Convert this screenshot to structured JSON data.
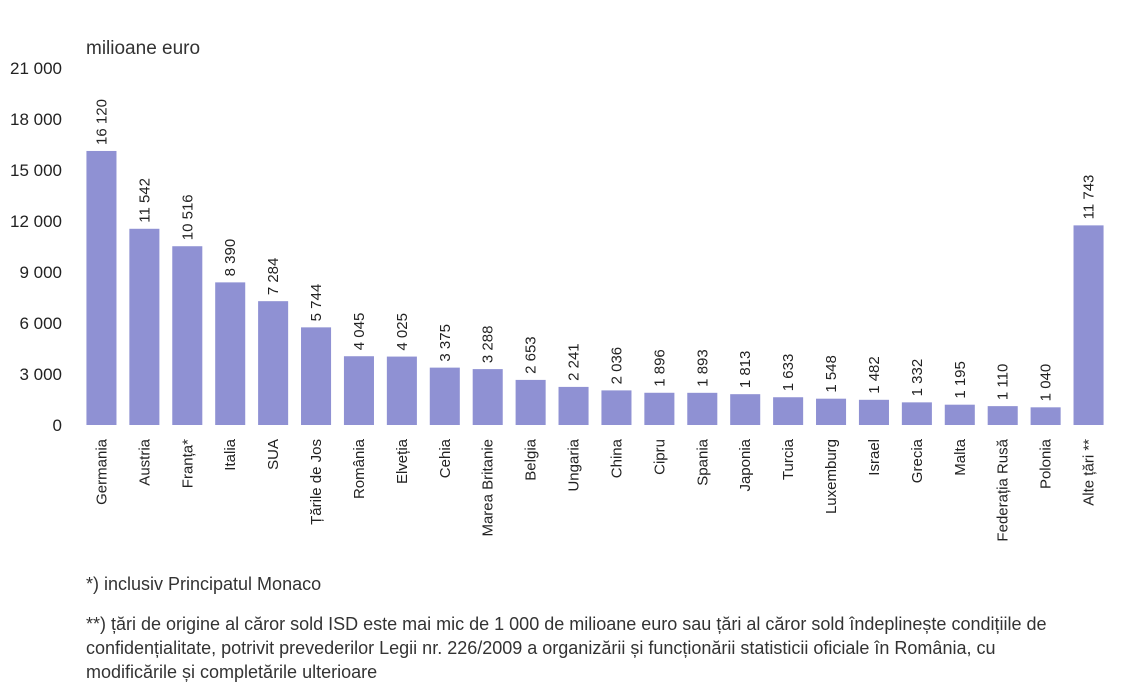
{
  "chart_data": {
    "type": "bar",
    "unit_label": "milioane euro",
    "categories": [
      "Germania",
      "Austria",
      "Franța*",
      "Italia",
      "SUA",
      "Țările de Jos",
      "România",
      "Elveția",
      "Cehia",
      "Marea Britanie",
      "Belgia",
      "Ungaria",
      "China",
      "Cipru",
      "Spania",
      "Japonia",
      "Turcia",
      "Luxemburg",
      "Israel",
      "Grecia",
      "Malta",
      "Federația Rusă",
      "Polonia",
      "Alte țări **"
    ],
    "values": [
      16120,
      11542,
      10516,
      8390,
      7284,
      5744,
      4045,
      4025,
      3375,
      3288,
      2653,
      2241,
      2036,
      1896,
      1893,
      1813,
      1633,
      1548,
      1482,
      1332,
      1195,
      1110,
      1040,
      11743
    ],
    "value_labels": [
      "16 120",
      "11 542",
      "10 516",
      "8 390",
      "7 284",
      "5 744",
      "4 045",
      "4 025",
      "3 375",
      "3 288",
      "2 653",
      "2 241",
      "2 036",
      "1 896",
      "1 893",
      "1 813",
      "1 633",
      "1 548",
      "1 482",
      "1 332",
      "1 195",
      "1 110",
      "1 040",
      "11 743"
    ],
    "yticks": [
      0,
      3000,
      6000,
      9000,
      12000,
      15000,
      18000,
      21000
    ],
    "ytick_labels": [
      "0",
      "3 000",
      "6 000",
      "9 000",
      "12 000",
      "15 000",
      "18 000",
      "21 000"
    ],
    "ylim": [
      0,
      21000
    ],
    "bar_color": "#8f91d3",
    "grid": false
  },
  "footnotes": {
    "note1": "*) inclusiv Principatul Monaco",
    "note2": "**) țări de origine al căror sold ISD este mai mic de 1 000 de milioane euro sau țări al căror sold îndeplinește condițiile de confidențialitate, potrivit prevederilor Legii nr. 226/2009 a organizării și funcționării statisticii oficiale în România, cu modificările și completările ulterioare"
  }
}
